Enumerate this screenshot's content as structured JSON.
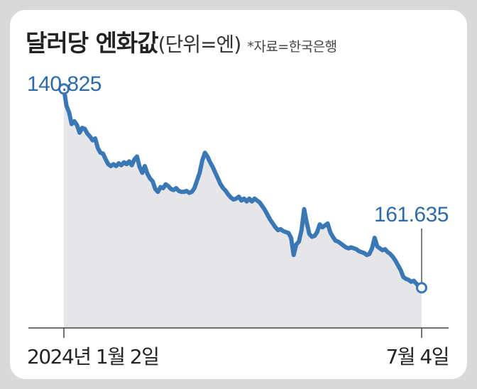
{
  "title": "달러당 엔화값",
  "unit": "(단위=엔)",
  "source": "*자료=한국은행",
  "colors": {
    "line": "#3a78b5",
    "area": "#e6e6e9",
    "axis": "#444444",
    "label_start": "#2f6aa8",
    "label_end": "#2f6aa8",
    "card": "#ffffff",
    "background": "#d9d9d9"
  },
  "chart_data": {
    "type": "area",
    "title": "달러당 엔화값",
    "subtitle": "(단위=엔)",
    "ylabel": "",
    "xlabel": "",
    "inverted_y": true,
    "grid": false,
    "x_tick_labels": [
      "2024년 1월 2일",
      "7월 4일"
    ],
    "annotations": [
      {
        "label": "140.825",
        "point": "first"
      },
      {
        "label": "161.635",
        "point": "last"
      }
    ],
    "ylim": [
      138.5,
      164.5
    ],
    "series": [
      {
        "values": [
          140.825,
          142.6,
          143.3,
          144.5,
          144.2,
          144.6,
          145.4,
          144.9,
          145.0,
          145.5,
          145.8,
          146.2,
          146.0,
          147.0,
          147.5,
          147.6,
          148.2,
          148.7,
          148.9,
          148.7,
          148.9,
          148.6,
          148.8,
          148.5,
          148.7,
          148.4,
          148.8,
          148.2,
          147.9,
          149.0,
          149.6,
          148.9,
          149.7,
          150.2,
          150.5,
          151.3,
          151.6,
          151.1,
          151.2,
          150.8,
          151.0,
          151.3,
          151.4,
          151.2,
          151.5,
          151.6,
          151.6,
          151.5,
          151.7,
          151.6,
          151.2,
          150.4,
          149.6,
          148.3,
          147.5,
          147.9,
          148.5,
          149.0,
          149.6,
          150.2,
          150.8,
          151.2,
          151.5,
          151.9,
          152.2,
          152.4,
          152.3,
          152.1,
          152.5,
          152.3,
          152.6,
          152.3,
          152.6,
          152.3,
          152.5,
          152.7,
          153.1,
          153.5,
          154.0,
          154.5,
          154.9,
          155.3,
          155.6,
          155.5,
          155.7,
          155.8,
          155.9,
          156.4,
          158.2,
          157.1,
          156.8,
          155.6,
          153.4,
          154.8,
          156.0,
          156.3,
          156.2,
          155.8,
          155.0,
          155.3,
          155.1,
          154.9,
          155.8,
          156.3,
          156.7,
          156.8,
          157.0,
          157.2,
          157.4,
          157.5,
          157.4,
          157.5,
          157.6,
          157.8,
          157.9,
          158.0,
          158.2,
          158.1,
          157.5,
          156.4,
          157.3,
          157.5,
          157.7,
          157.6,
          157.9,
          158.1,
          158.4,
          158.8,
          159.3,
          159.8,
          160.5,
          160.7,
          160.8,
          161.0,
          160.9,
          161.2,
          161.5,
          161.635
        ]
      }
    ]
  },
  "labels": {
    "x_start": "2024년 1월 2일",
    "x_end": "7월 4일",
    "start_value": "140.825",
    "end_value": "161.635"
  }
}
